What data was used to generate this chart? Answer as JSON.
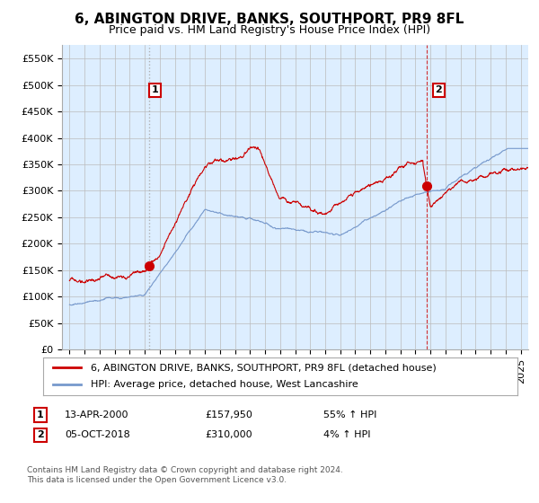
{
  "title": "6, ABINGTON DRIVE, BANKS, SOUTHPORT, PR9 8FL",
  "subtitle": "Price paid vs. HM Land Registry's House Price Index (HPI)",
  "ylabel_ticks": [
    "£0",
    "£50K",
    "£100K",
    "£150K",
    "£200K",
    "£250K",
    "£300K",
    "£350K",
    "£400K",
    "£450K",
    "£500K",
    "£550K"
  ],
  "ytick_vals": [
    0,
    50000,
    100000,
    150000,
    200000,
    250000,
    300000,
    350000,
    400000,
    450000,
    500000,
    550000
  ],
  "ylim": [
    0,
    575000
  ],
  "xlim_start": 1994.5,
  "xlim_end": 2025.5,
  "sale1_x": 2000.28,
  "sale1_y": 157950,
  "sale1_label": "1",
  "sale2_x": 2018.75,
  "sale2_y": 310000,
  "sale2_label": "2",
  "red_line_color": "#cc0000",
  "blue_line_color": "#7799cc",
  "sale1_vline_color": "#aaaaaa",
  "sale2_vline_color": "#cc0000",
  "grid_color": "#bbbbbb",
  "plot_bg_color": "#ddeeff",
  "background_color": "#ffffff",
  "legend_line1": "6, ABINGTON DRIVE, BANKS, SOUTHPORT, PR9 8FL (detached house)",
  "legend_line2": "HPI: Average price, detached house, West Lancashire",
  "annotation1_date": "13-APR-2000",
  "annotation1_price": "£157,950",
  "annotation1_hpi": "55% ↑ HPI",
  "annotation2_date": "05-OCT-2018",
  "annotation2_price": "£310,000",
  "annotation2_hpi": "4% ↑ HPI",
  "footer_text": "Contains HM Land Registry data © Crown copyright and database right 2024.\nThis data is licensed under the Open Government Licence v3.0.",
  "title_fontsize": 11,
  "subtitle_fontsize": 9,
  "tick_fontsize": 8,
  "legend_fontsize": 8,
  "annotation_fontsize": 8
}
